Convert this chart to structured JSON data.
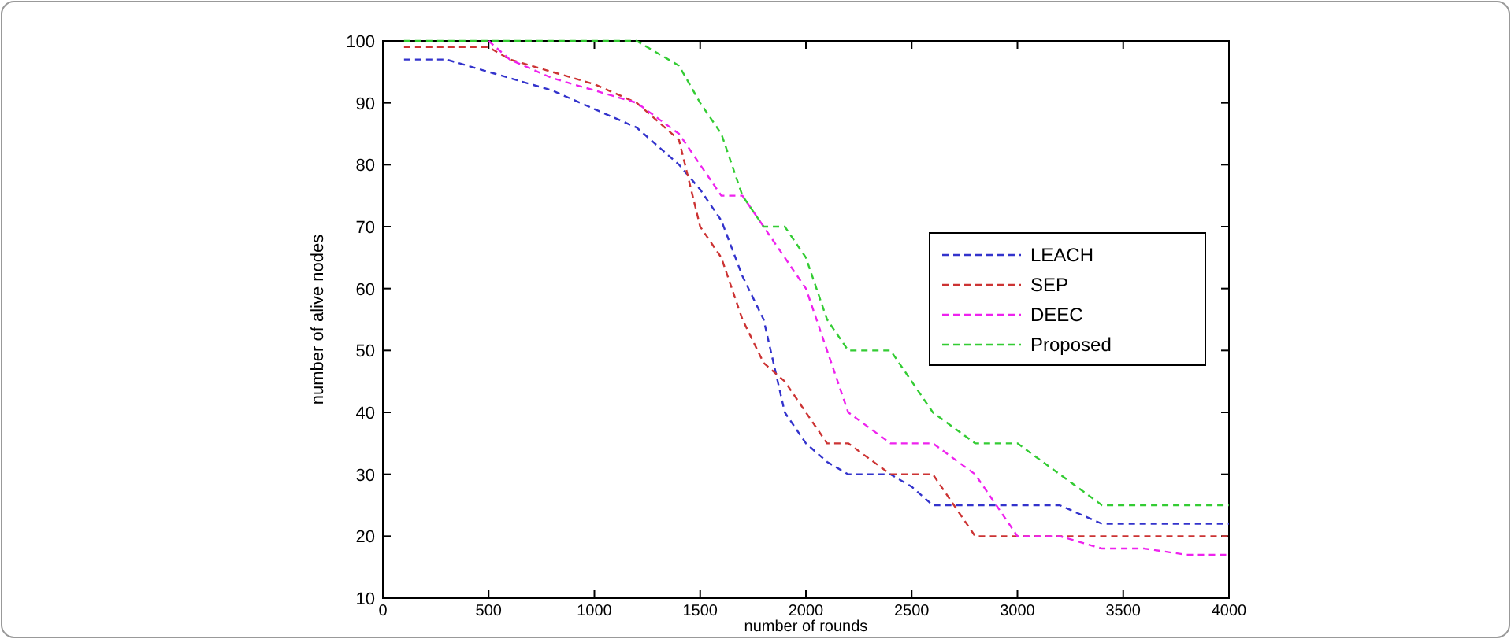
{
  "chart_data": {
    "type": "line",
    "xlabel": "number of rounds",
    "ylabel": "number of alive nodes",
    "xlim": [
      0,
      4000
    ],
    "ylim": [
      10,
      100
    ],
    "xticks": [
      0,
      500,
      1000,
      1500,
      2000,
      2500,
      3000,
      3500,
      4000
    ],
    "yticks": [
      10,
      20,
      30,
      40,
      50,
      60,
      70,
      80,
      90,
      100
    ],
    "legend": "right",
    "line_style": "dashed",
    "grid": false,
    "series": [
      {
        "name": "LEACH",
        "color": "#3333cc",
        "x": [
          100,
          300,
          500,
          800,
          1000,
          1200,
          1400,
          1500,
          1600,
          1700,
          1800,
          1900,
          2000,
          2100,
          2200,
          2400,
          2500,
          2600,
          3200,
          3400,
          4000
        ],
        "values": [
          97,
          97,
          95,
          92,
          89,
          86,
          80,
          76,
          71,
          62,
          55,
          40,
          35,
          32,
          30,
          30,
          28,
          25,
          25,
          22,
          22
        ]
      },
      {
        "name": "SEP",
        "color": "#cc3333",
        "x": [
          100,
          500,
          600,
          1000,
          1200,
          1400,
          1500,
          1600,
          1700,
          1800,
          1900,
          2000,
          2100,
          2200,
          2400,
          2600,
          2800,
          4000
        ],
        "values": [
          99,
          99,
          97,
          93,
          90,
          84,
          70,
          65,
          55,
          48,
          45,
          40,
          35,
          35,
          30,
          30,
          20,
          20
        ]
      },
      {
        "name": "DEEC",
        "color": "#ee22ee",
        "x": [
          500,
          600,
          800,
          1000,
          1200,
          1400,
          1500,
          1600,
          1700,
          1800,
          1900,
          2000,
          2100,
          2200,
          2400,
          2600,
          2800,
          2900,
          3000,
          3200,
          3400,
          3600,
          3800,
          4000
        ],
        "values": [
          100,
          97,
          94,
          92,
          90,
          85,
          80,
          75,
          75,
          70,
          65,
          60,
          50,
          40,
          35,
          35,
          30,
          25,
          20,
          20,
          18,
          18,
          17,
          17
        ]
      },
      {
        "name": "Proposed",
        "color": "#33cc33",
        "x": [
          100,
          1200,
          1400,
          1500,
          1600,
          1700,
          1800,
          1900,
          2000,
          2100,
          2200,
          2400,
          2500,
          2600,
          2800,
          3000,
          3200,
          3400,
          4000
        ],
        "values": [
          100,
          100,
          96,
          90,
          85,
          75,
          70,
          70,
          65,
          55,
          50,
          50,
          45,
          40,
          35,
          35,
          30,
          25,
          25
        ]
      }
    ]
  }
}
